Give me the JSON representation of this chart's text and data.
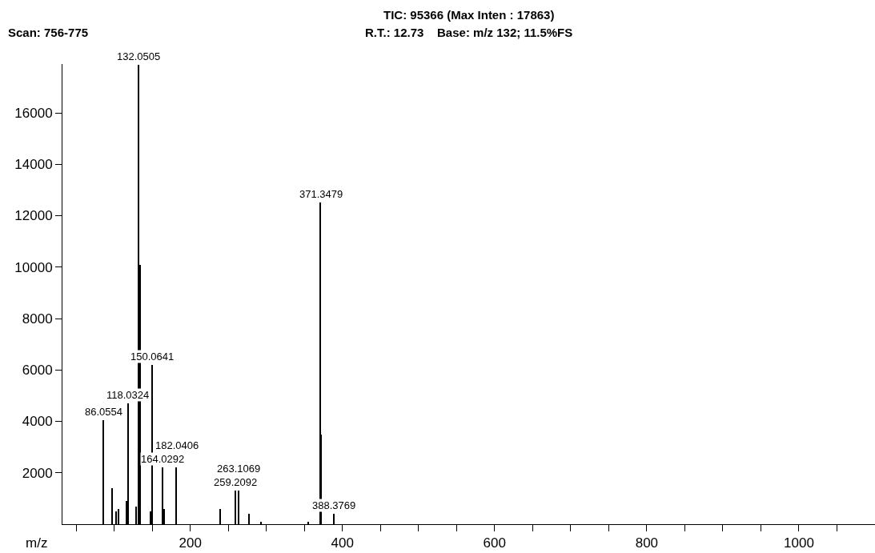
{
  "chart_data": {
    "type": "bar",
    "title": "TIC: 95366 (Max Inten : 17863)",
    "subtitle": "R.T.: 12.73    Base: m/z 132; 11.5%FS",
    "annotations": [
      "Scan: 756-775",
      {
        "text": "86.0554",
        "x": 86.0554,
        "y": 4050
      },
      {
        "text": "118.0324",
        "x": 118.0324,
        "y": 4700
      },
      {
        "text": "132.0505",
        "x": 132.0505,
        "y": 17863
      },
      {
        "text": "150.0641",
        "x": 150.0641,
        "y": 6200
      },
      {
        "text": "164.0292",
        "x": 164.0292,
        "y": 2200
      },
      {
        "text": "182.0406",
        "x": 182.0406,
        "y": 2200
      },
      {
        "text": "259.2092",
        "x": 259.2092,
        "y": 1300
      },
      {
        "text": "263.1069",
        "x": 263.1069,
        "y": 1300
      },
      {
        "text": "371.3479",
        "x": 371.3479,
        "y": 12500
      },
      {
        "text": "388.3769",
        "x": 388.3769,
        "y": 400
      }
    ],
    "xlabel": "m/z",
    "x": [
      86.0554,
      97.4,
      102.6,
      105.4,
      115.8,
      118.0324,
      129.3,
      132.0505,
      133.8,
      147.7,
      150.0641,
      164.0292,
      165.7,
      182.0406,
      239.9,
      259.2092,
      263.1069,
      277,
      293,
      355,
      371.3479,
      372.3,
      388.3769
    ],
    "series": [
      {
        "color": "#000000",
        "values": [
          4050,
          1400,
          500,
          600,
          900,
          4700,
          700,
          17863,
          10100,
          500,
          6200,
          2200,
          600,
          2200,
          600,
          1300,
          1300,
          400,
          100,
          100,
          12500,
          3500,
          400
        ]
      }
    ],
    "xlim": [
      32,
      1100
    ],
    "ylim": [
      0,
      17900
    ],
    "xticks": [
      {
        "value": 50,
        "label": null
      },
      {
        "value": 100,
        "label": null
      },
      {
        "value": 150,
        "label": null
      },
      200,
      {
        "value": 250,
        "label": null
      },
      {
        "value": 300,
        "label": null
      },
      {
        "value": 350,
        "label": null
      },
      400,
      {
        "value": 450,
        "label": null
      },
      {
        "value": 500,
        "label": null
      },
      {
        "value": 550,
        "label": null
      },
      600,
      {
        "value": 650,
        "label": null
      },
      {
        "value": 700,
        "label": null
      },
      {
        "value": 750,
        "label": null
      },
      800,
      {
        "value": 850,
        "label": null
      },
      {
        "value": 900,
        "label": null
      },
      {
        "value": 950,
        "label": null
      },
      1000,
      {
        "value": 1050,
        "label": null
      }
    ],
    "yticks": [
      2000,
      4000,
      6000,
      8000,
      10000,
      12000,
      14000,
      16000
    ]
  }
}
